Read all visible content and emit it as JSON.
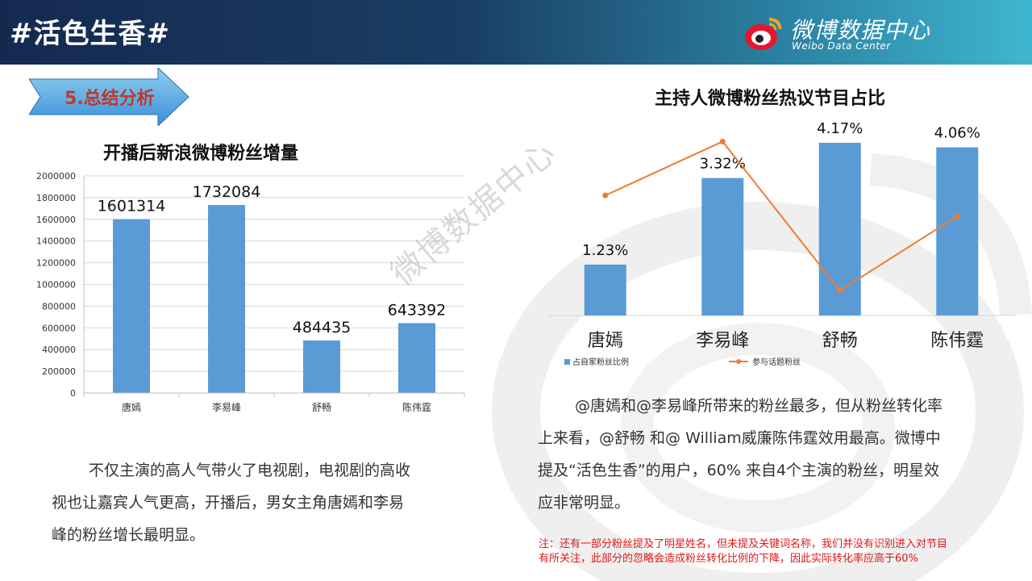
{
  "header": {
    "title": "#活色生香#",
    "brand_name": "微博数据中心",
    "brand_sub": "Weibo Data Center"
  },
  "section": {
    "label": "5.总结分析"
  },
  "watermark": "微博数据中心",
  "colors": {
    "bar": "#5b9bd5",
    "line": "#ed7d31",
    "note": "#e01818",
    "section": "#c0392b"
  },
  "chart_data": [
    {
      "type": "bar",
      "title": "开播后新浪微博粉丝增量",
      "categories": [
        "唐嫣",
        "李易峰",
        "舒畅",
        "陈伟霆"
      ],
      "values": [
        1601314,
        1732084,
        484435,
        643392
      ],
      "ylim": [
        0,
        2000000
      ],
      "yticks": [
        "0",
        "200000",
        "400000",
        "600000",
        "800000",
        "1000000",
        "1200000",
        "1400000",
        "1600000",
        "1800000",
        "2000000"
      ],
      "grid": true
    },
    {
      "type": "bar",
      "title": "主持人微博粉丝热议节目占比",
      "categories": [
        "唐嫣",
        "李易峰",
        "舒畅",
        "陈伟霆"
      ],
      "series": [
        {
          "name": "占自家粉丝比例",
          "type": "bar",
          "values": [
            1.23,
            3.32,
            4.17,
            4.06
          ],
          "labels": [
            "1.23%",
            "3.32%",
            "4.17%",
            "4.06%"
          ]
        },
        {
          "name": "参与话题粉丝",
          "type": "line",
          "values": [
            2.9,
            4.2,
            0.6,
            2.4
          ]
        }
      ],
      "ylim": [
        0,
        4.5
      ],
      "legend": "bottom",
      "grid": false
    }
  ],
  "paragraphs": {
    "left": [
      "不仅主演的高人气带火了电视剧，电视剧的高收",
      "视也让嘉宾人气更高，开播后，男女主角唐嫣和李易",
      "峰的粉丝增长最明显。"
    ],
    "right": [
      "@唐嫣和@李易峰所带来的粉丝最多，但从粉丝转化率",
      "上来看，@舒畅  和@ William威廉陈伟霆效用最高。微博中",
      "提及“活色生香”的用户，60% 来自4个主演的粉丝，明星效",
      "应非常明显。"
    ]
  },
  "note": [
    "注：还有一部分粉丝提及了明星姓名，但未提及关键词名称，我们并没有识别进入对节目",
    "有所关注，此部分的忽略会造成粉丝转化比例的下降，因此实际转化率应高于60%"
  ]
}
